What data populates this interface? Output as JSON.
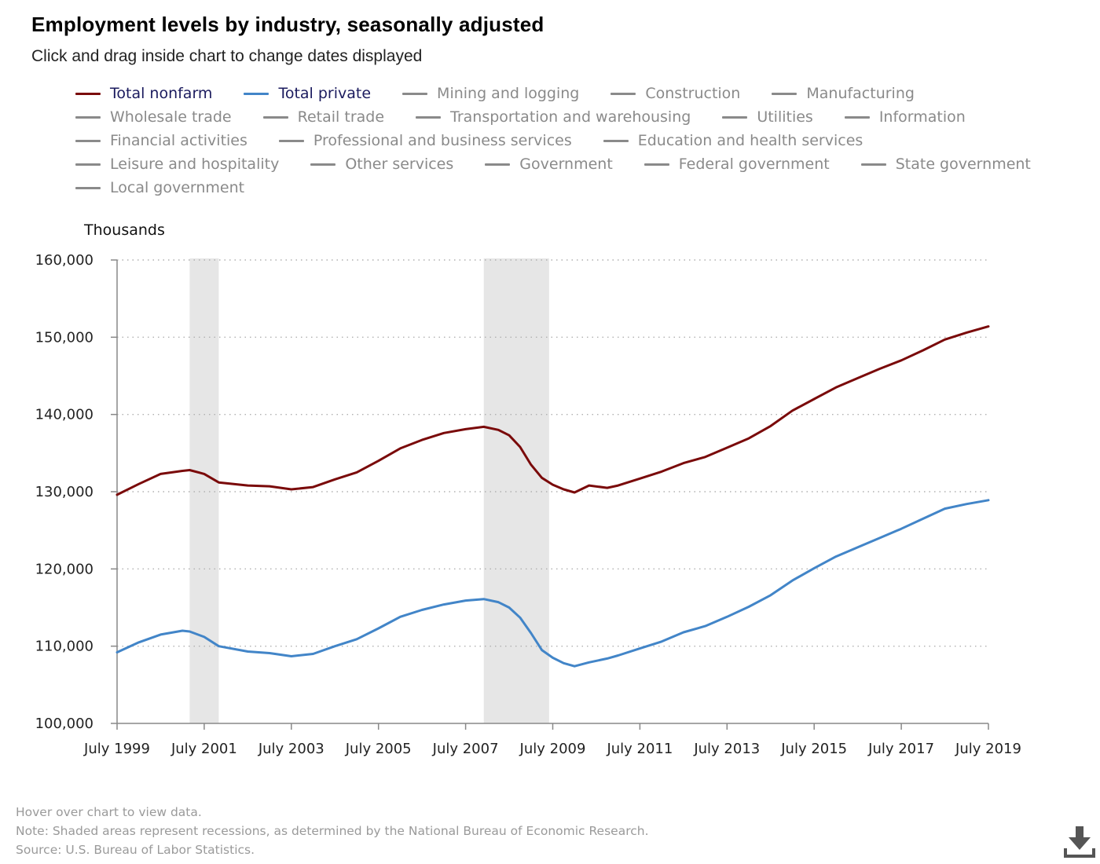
{
  "title": "Employment levels by industry, seasonally adjusted",
  "subtitle": "Click and drag inside chart to change dates displayed",
  "legend_rows": [
    [
      {
        "label": "Total nonfarm",
        "color": "#7a0a0a",
        "active": true
      },
      {
        "label": "Total private",
        "color": "#4285c8",
        "active": true
      },
      {
        "label": "Mining and logging",
        "color": "#8a8a8a",
        "active": false
      },
      {
        "label": "Construction",
        "color": "#8a8a8a",
        "active": false
      },
      {
        "label": "Manufacturing",
        "color": "#8a8a8a",
        "active": false
      }
    ],
    [
      {
        "label": "Wholesale trade",
        "color": "#8a8a8a",
        "active": false
      },
      {
        "label": "Retail trade",
        "color": "#8a8a8a",
        "active": false
      },
      {
        "label": "Transportation and warehousing",
        "color": "#8a8a8a",
        "active": false
      },
      {
        "label": "Utilities",
        "color": "#8a8a8a",
        "active": false
      },
      {
        "label": "Information",
        "color": "#8a8a8a",
        "active": false
      }
    ],
    [
      {
        "label": "Financial activities",
        "color": "#8a8a8a",
        "active": false
      },
      {
        "label": "Professional and business services",
        "color": "#8a8a8a",
        "active": false
      },
      {
        "label": "Education and health services",
        "color": "#8a8a8a",
        "active": false
      }
    ],
    [
      {
        "label": "Leisure and hospitality",
        "color": "#8a8a8a",
        "active": false
      },
      {
        "label": "Other services",
        "color": "#8a8a8a",
        "active": false
      },
      {
        "label": "Government",
        "color": "#8a8a8a",
        "active": false
      },
      {
        "label": "Federal government",
        "color": "#8a8a8a",
        "active": false
      },
      {
        "label": "State government",
        "color": "#8a8a8a",
        "active": false
      }
    ],
    [
      {
        "label": "Local government",
        "color": "#8a8a8a",
        "active": false
      }
    ]
  ],
  "notes": {
    "hover": "Hover over chart to view data.",
    "note": "Note: Shaded areas represent recessions, as determined by the National Bureau of Economic Research.",
    "source": "Source: U.S. Bureau of Labor Statistics."
  },
  "chart_data": {
    "type": "line",
    "title": "Employment levels by industry, seasonally adjusted",
    "ylabel": "Thousands",
    "xlabel": "",
    "xlim": [
      "1999-07",
      "2019-07"
    ],
    "ylim": [
      100000,
      160000
    ],
    "yticks": [
      100000,
      110000,
      120000,
      130000,
      140000,
      150000,
      160000
    ],
    "ytick_labels": [
      "100,000",
      "110,000",
      "120,000",
      "130,000",
      "140,000",
      "150,000",
      "160,000"
    ],
    "xticks": [
      "1999-07",
      "2001-07",
      "2003-07",
      "2005-07",
      "2007-07",
      "2009-07",
      "2011-07",
      "2013-07",
      "2015-07",
      "2017-07",
      "2019-07"
    ],
    "xtick_labels": [
      "July 1999",
      "July 2001",
      "July 2003",
      "July 2005",
      "July 2007",
      "July 2009",
      "July 2011",
      "July 2013",
      "July 2015",
      "July 2017",
      "July 2019"
    ],
    "grid": "horizontal dotted",
    "legend": "top",
    "recessions": [
      [
        "2001-03",
        "2001-11"
      ],
      [
        "2007-12",
        "2009-06"
      ]
    ],
    "series": [
      {
        "name": "Total nonfarm",
        "color": "#7a0a0a",
        "points": [
          [
            "1999-07",
            129600
          ],
          [
            "2000-01",
            131000
          ],
          [
            "2000-07",
            132300
          ],
          [
            "2001-01",
            132700
          ],
          [
            "2001-03",
            132800
          ],
          [
            "2001-07",
            132300
          ],
          [
            "2001-11",
            131200
          ],
          [
            "2002-07",
            130800
          ],
          [
            "2003-01",
            130700
          ],
          [
            "2003-07",
            130300
          ],
          [
            "2004-01",
            130600
          ],
          [
            "2004-07",
            131600
          ],
          [
            "2005-01",
            132500
          ],
          [
            "2005-07",
            134000
          ],
          [
            "2006-01",
            135600
          ],
          [
            "2006-07",
            136700
          ],
          [
            "2007-01",
            137600
          ],
          [
            "2007-07",
            138100
          ],
          [
            "2007-12",
            138400
          ],
          [
            "2008-04",
            138000
          ],
          [
            "2008-07",
            137300
          ],
          [
            "2008-10",
            135800
          ],
          [
            "2009-01",
            133500
          ],
          [
            "2009-04",
            131800
          ],
          [
            "2009-07",
            130900
          ],
          [
            "2009-10",
            130300
          ],
          [
            "2010-01",
            129900
          ],
          [
            "2010-05",
            130800
          ],
          [
            "2010-10",
            130500
          ],
          [
            "2011-01",
            130800
          ],
          [
            "2011-07",
            131700
          ],
          [
            "2012-01",
            132600
          ],
          [
            "2012-07",
            133700
          ],
          [
            "2013-01",
            134500
          ],
          [
            "2013-07",
            135700
          ],
          [
            "2014-01",
            136900
          ],
          [
            "2014-07",
            138500
          ],
          [
            "2015-01",
            140500
          ],
          [
            "2015-07",
            142000
          ],
          [
            "2016-01",
            143500
          ],
          [
            "2016-07",
            144700
          ],
          [
            "2017-01",
            145900
          ],
          [
            "2017-07",
            147000
          ],
          [
            "2018-01",
            148300
          ],
          [
            "2018-07",
            149700
          ],
          [
            "2019-01",
            150600
          ],
          [
            "2019-07",
            151400
          ]
        ]
      },
      {
        "name": "Total private",
        "color": "#4285c8",
        "points": [
          [
            "1999-07",
            109200
          ],
          [
            "2000-01",
            110500
          ],
          [
            "2000-07",
            111500
          ],
          [
            "2001-01",
            112000
          ],
          [
            "2001-03",
            111900
          ],
          [
            "2001-07",
            111200
          ],
          [
            "2001-11",
            110000
          ],
          [
            "2002-07",
            109300
          ],
          [
            "2003-01",
            109100
          ],
          [
            "2003-07",
            108700
          ],
          [
            "2004-01",
            109000
          ],
          [
            "2004-07",
            110000
          ],
          [
            "2005-01",
            110900
          ],
          [
            "2005-07",
            112300
          ],
          [
            "2006-01",
            113800
          ],
          [
            "2006-07",
            114700
          ],
          [
            "2007-01",
            115400
          ],
          [
            "2007-07",
            115900
          ],
          [
            "2007-12",
            116100
          ],
          [
            "2008-04",
            115700
          ],
          [
            "2008-07",
            115000
          ],
          [
            "2008-10",
            113700
          ],
          [
            "2009-01",
            111700
          ],
          [
            "2009-04",
            109500
          ],
          [
            "2009-07",
            108500
          ],
          [
            "2009-10",
            107800
          ],
          [
            "2010-01",
            107400
          ],
          [
            "2010-05",
            107900
          ],
          [
            "2010-10",
            108400
          ],
          [
            "2011-01",
            108800
          ],
          [
            "2011-07",
            109700
          ],
          [
            "2012-01",
            110600
          ],
          [
            "2012-07",
            111800
          ],
          [
            "2013-01",
            112600
          ],
          [
            "2013-07",
            113800
          ],
          [
            "2014-01",
            115100
          ],
          [
            "2014-07",
            116600
          ],
          [
            "2015-01",
            118500
          ],
          [
            "2015-07",
            120100
          ],
          [
            "2016-01",
            121600
          ],
          [
            "2016-07",
            122800
          ],
          [
            "2017-01",
            124000
          ],
          [
            "2017-07",
            125200
          ],
          [
            "2018-01",
            126500
          ],
          [
            "2018-07",
            127800
          ],
          [
            "2019-01",
            128400
          ],
          [
            "2019-07",
            128900
          ]
        ]
      }
    ]
  }
}
